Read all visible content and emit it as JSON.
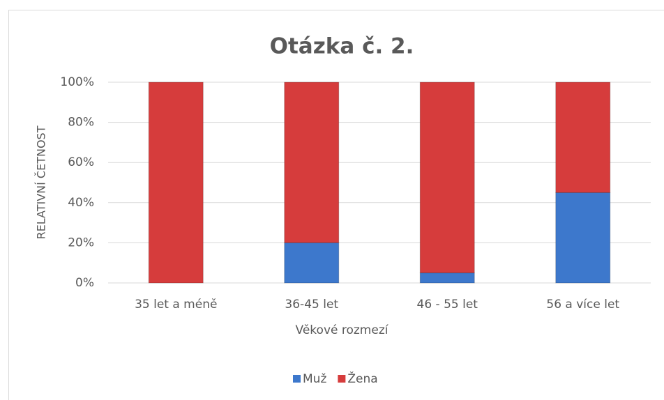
{
  "chart_data": {
    "type": "stacked_bar",
    "title": "Otázka č. 2.",
    "x_label": "Věkové rozmezí",
    "y_label": "RELATIVNÍ ČETNOST",
    "categories": [
      "35 let a méně",
      "36-45 let",
      "46 - 55 let",
      "56 a více let"
    ],
    "series": [
      {
        "name": "Muž",
        "color": "#3d78cc",
        "values": [
          0,
          20,
          5,
          45
        ]
      },
      {
        "name": "Žena",
        "color": "#d63c3c",
        "values": [
          100,
          80,
          95,
          55
        ]
      }
    ],
    "ylim": [
      0,
      100
    ],
    "yticks": [
      {
        "value": 0,
        "label": "0%"
      },
      {
        "value": 20,
        "label": "20%"
      },
      {
        "value": 40,
        "label": "40%"
      },
      {
        "value": 60,
        "label": "60%"
      },
      {
        "value": 80,
        "label": "80%"
      },
      {
        "value": 100,
        "label": "100%"
      }
    ],
    "grid": true,
    "legend": "bottom"
  }
}
